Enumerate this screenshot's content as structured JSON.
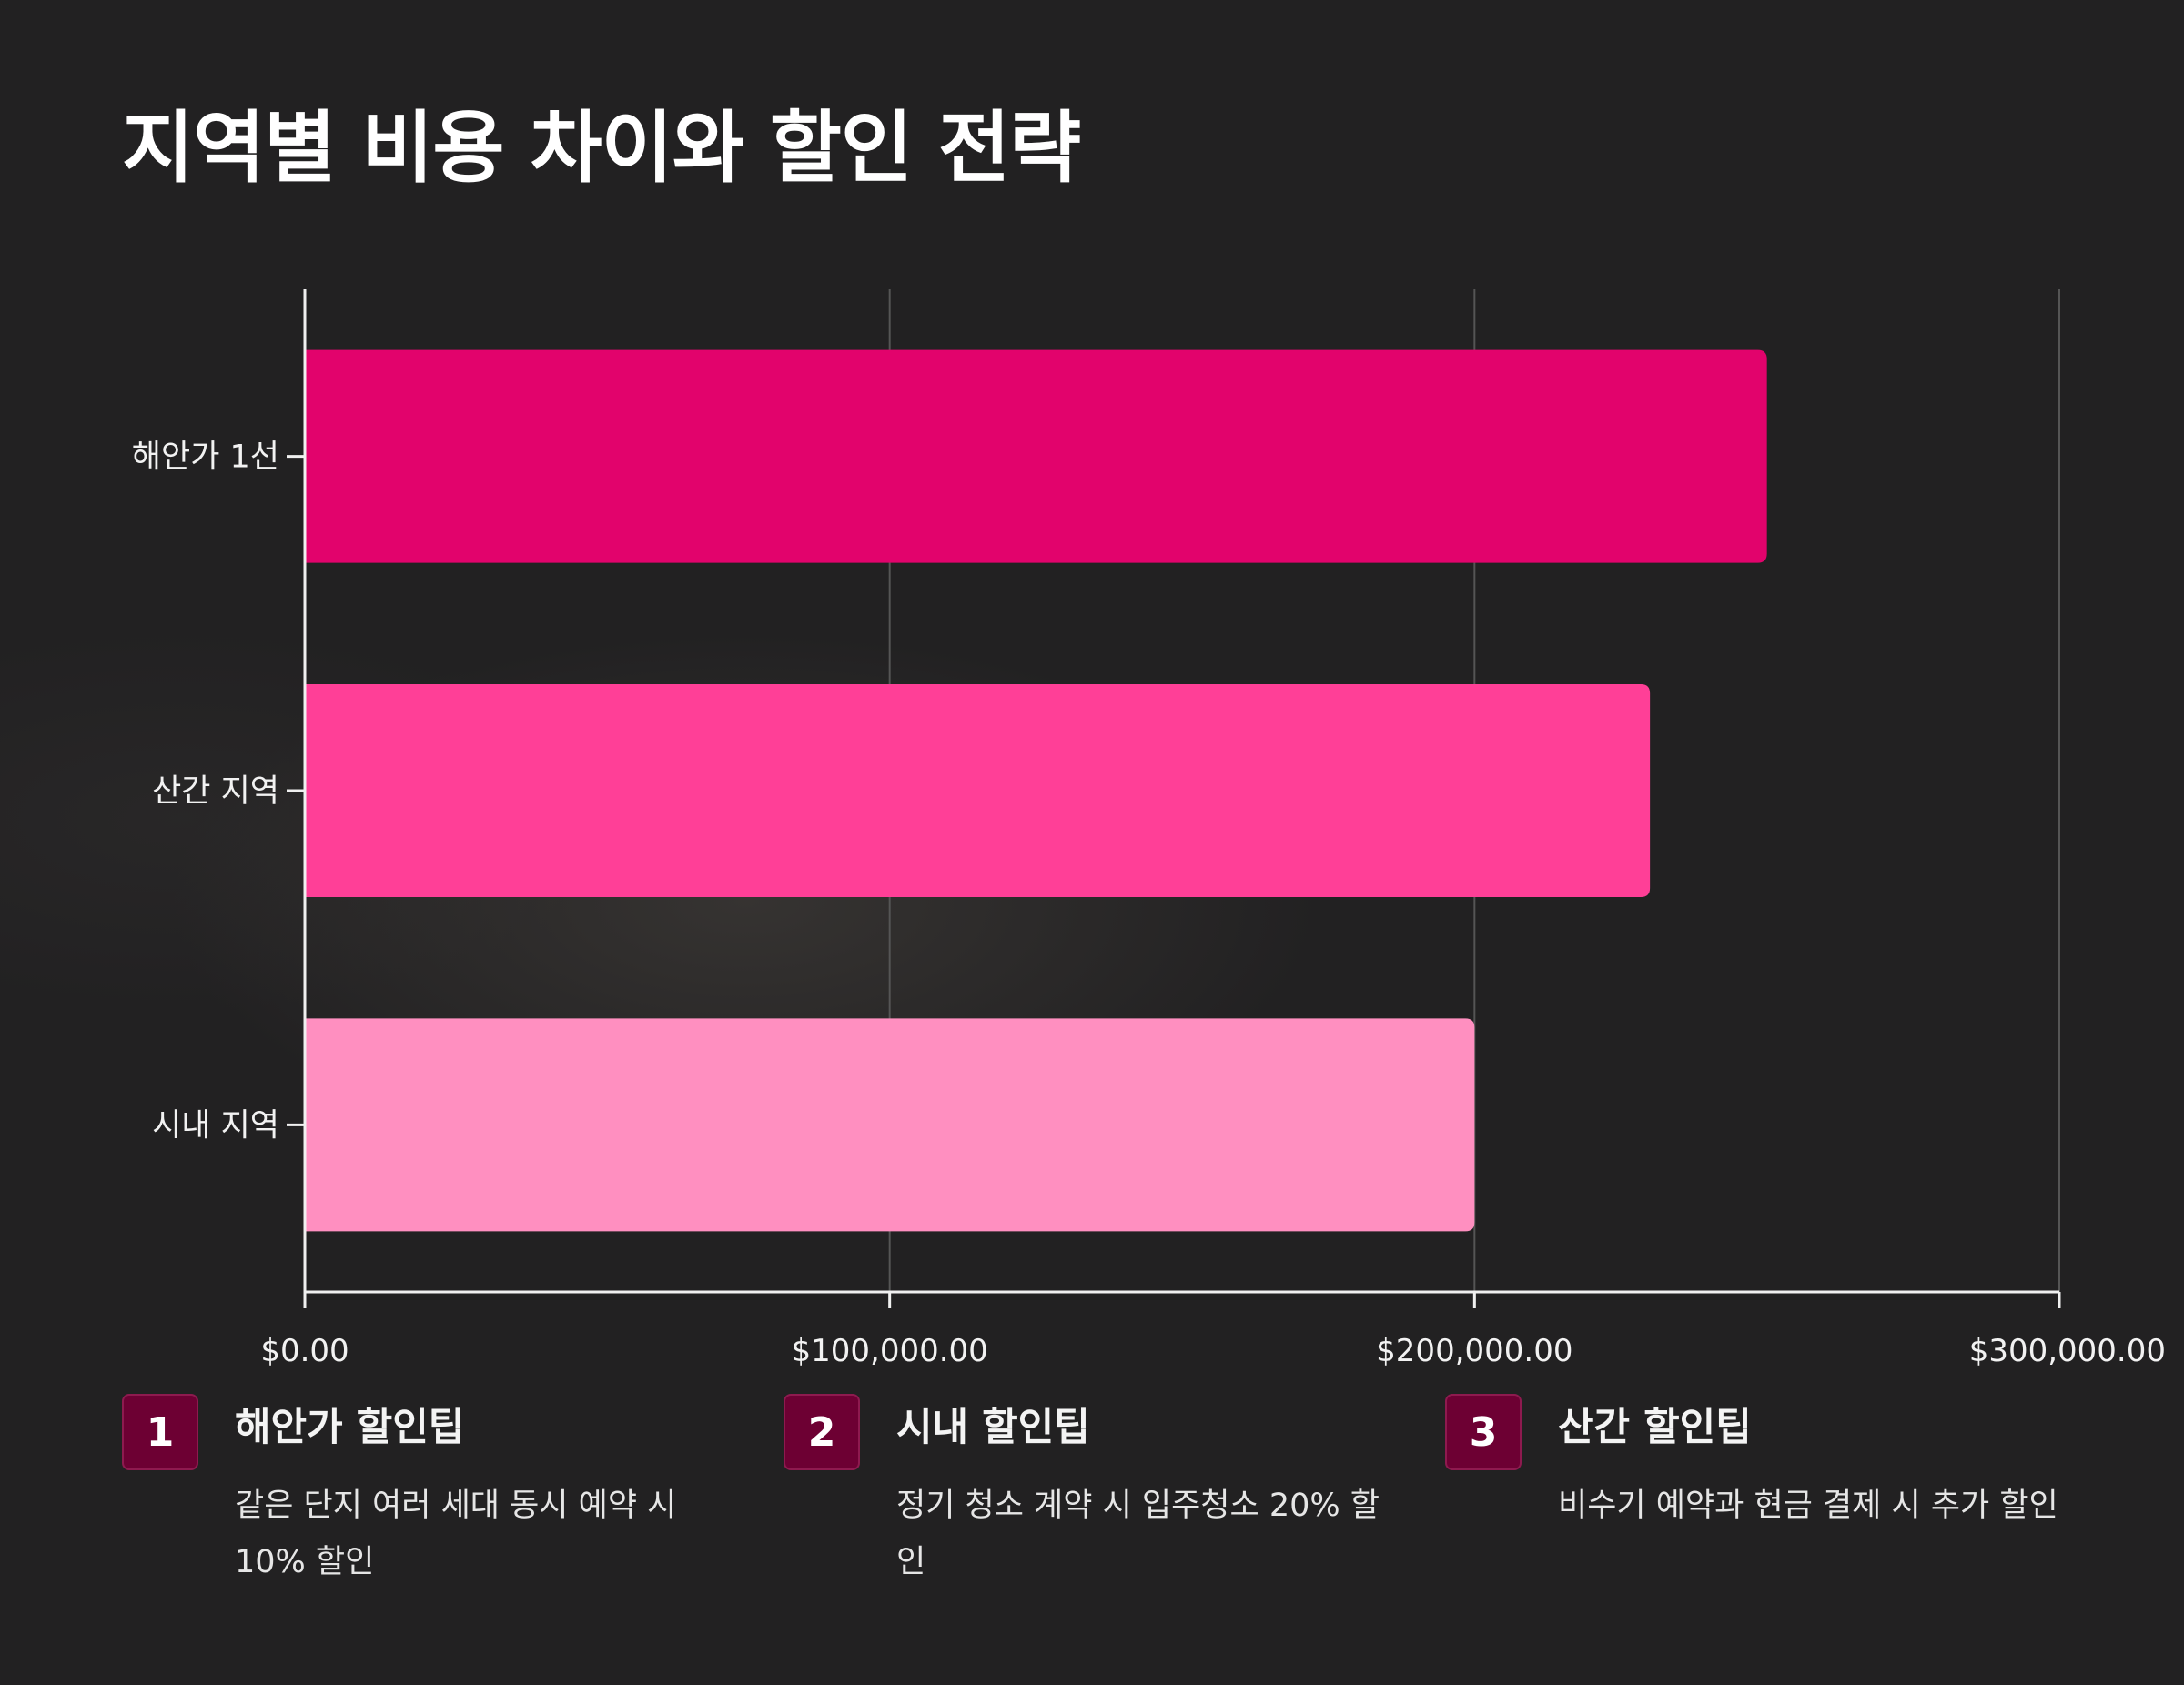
{
  "title": "지역별 비용 차이와 할인 전략",
  "colors": {
    "background": "#222122",
    "axis": "#f0f0f0",
    "grid": "#555555",
    "badge": "#6d0033"
  },
  "chart_data": {
    "type": "bar",
    "orientation": "horizontal",
    "categories": [
      "해안가 1선",
      "산간 지역",
      "시내 지역"
    ],
    "values": [
      250000,
      230000,
      200000
    ],
    "bar_colors": [
      "#e2036c",
      "#ff3f97",
      "#ff8fc0"
    ],
    "xlim": [
      0,
      300000
    ],
    "x_ticks": [
      0,
      100000,
      200000,
      300000
    ],
    "x_tick_labels": [
      "$0.00",
      "$100,000.00",
      "$200,000.00",
      "$300,000.00"
    ],
    "grid": "vertical"
  },
  "tips": [
    {
      "num": "1",
      "title": "해안가 할인팁",
      "desc": "같은 단지 여러 세대 동시 예약 시 10% 할인"
    },
    {
      "num": "2",
      "title": "시내 할인팁",
      "desc": "정기 청소 계약 시 입주청소 20% 할인"
    },
    {
      "num": "3",
      "title": "산간 할인팁",
      "desc": "비수기 예약과 현금 결제 시 추가 할인"
    }
  ]
}
